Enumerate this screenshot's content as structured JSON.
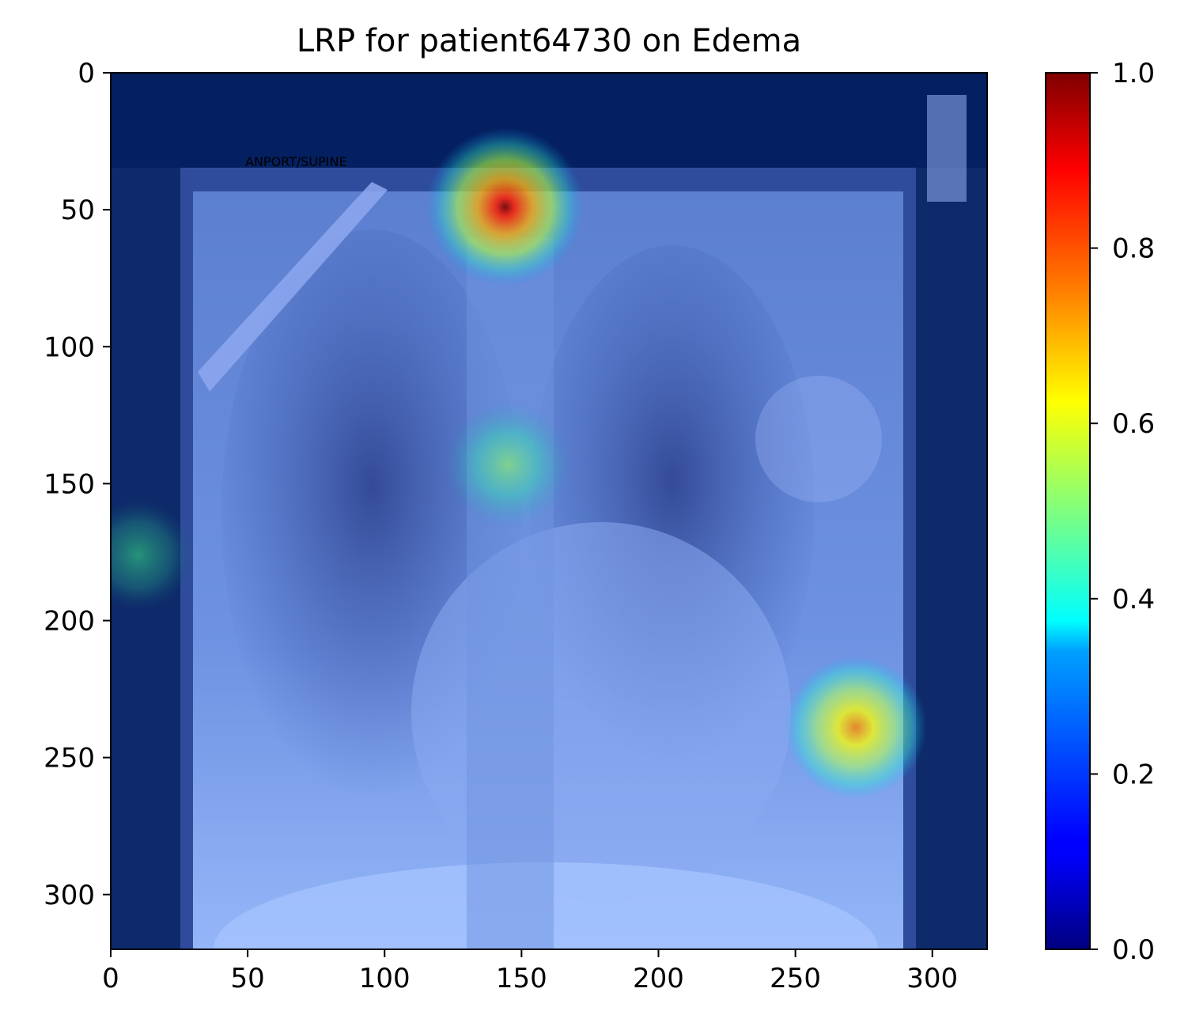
{
  "chart_data": {
    "type": "heatmap",
    "title": "LRP for patient64730 on Edema",
    "xlim": [
      0,
      320
    ],
    "ylim": [
      320,
      0
    ],
    "x_ticks": [
      0,
      50,
      100,
      150,
      200,
      250,
      300
    ],
    "x_tick_labels": [
      "0",
      "50",
      "100",
      "150",
      "200",
      "250",
      "300"
    ],
    "y_ticks": [
      0,
      50,
      100,
      150,
      200,
      250,
      300
    ],
    "y_tick_labels": [
      "0",
      "50",
      "100",
      "150",
      "200",
      "250",
      "300"
    ],
    "colormap": "jet",
    "colorbar": {
      "range": [
        0.0,
        1.0
      ],
      "ticks": [
        0.0,
        0.2,
        0.4,
        0.6,
        0.8,
        1.0
      ],
      "tick_labels": [
        "0.0",
        "0.2",
        "0.4",
        "0.6",
        "0.8",
        "1.0"
      ],
      "colors": [
        "#00007f",
        "#0000ff",
        "#007fff",
        "#00ffff",
        "#7fff7f",
        "#ffff00",
        "#ff7f00",
        "#ff0000",
        "#7f0000"
      ]
    },
    "hotspots": [
      {
        "x": 144,
        "y": 49,
        "value": 1.0
      },
      {
        "x": 272,
        "y": 239,
        "value": 0.68
      },
      {
        "x": 145,
        "y": 143,
        "value": 0.5
      },
      {
        "x": 10,
        "y": 176,
        "value": 0.42
      }
    ],
    "background_image_text": "ANPORT/SUPINE"
  }
}
